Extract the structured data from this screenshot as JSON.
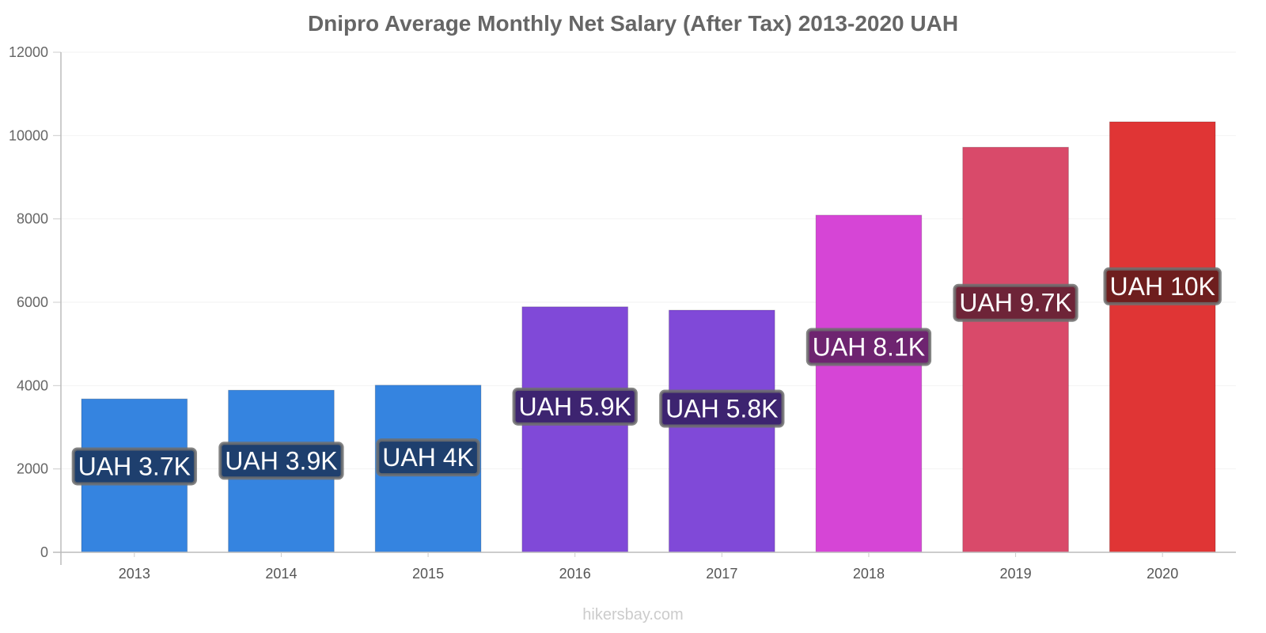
{
  "chart_data": {
    "type": "bar",
    "title": "Dnipro Average Monthly Net Salary (After Tax) 2013-2020 UAH",
    "xlabel": "",
    "ylabel": "",
    "ylim": [
      0,
      12000
    ],
    "yticks": [
      0,
      2000,
      4000,
      6000,
      8000,
      10000,
      12000
    ],
    "grid": true,
    "categories": [
      "2013",
      "2014",
      "2015",
      "2016",
      "2017",
      "2018",
      "2019",
      "2020"
    ],
    "values": [
      3680,
      3890,
      4010,
      5890,
      5810,
      8090,
      9720,
      10330
    ],
    "data_labels": [
      "UAH 3.7K",
      "UAH 3.9K",
      "UAH 4K",
      "UAH 5.9K",
      "UAH 5.8K",
      "UAH 8.1K",
      "UAH 9.7K",
      "UAH 10K"
    ],
    "bar_colors": [
      "#3584e0",
      "#3584e0",
      "#3584e0",
      "#8049d8",
      "#8049d8",
      "#d645d6",
      "#d94a6a",
      "#e03535"
    ],
    "label_bg_colors": [
      "#1e3f6e",
      "#1e3f6e",
      "#1e3f6e",
      "#3d2470",
      "#3d2470",
      "#6e2470",
      "#6e2438",
      "#6e1e1e"
    ]
  },
  "watermark": "hikersbay.com"
}
